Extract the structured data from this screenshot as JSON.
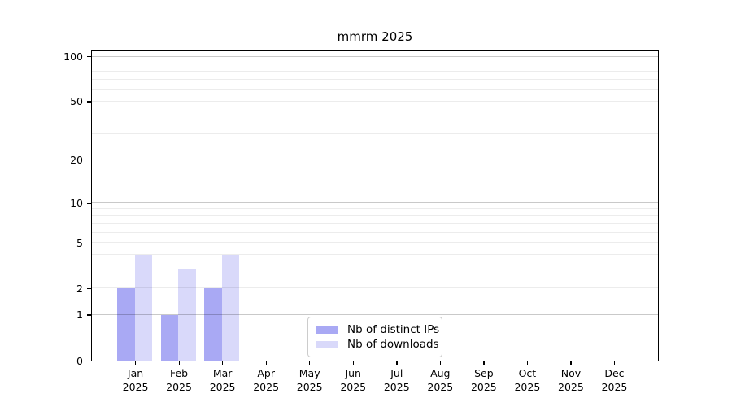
{
  "chart_data": {
    "type": "bar",
    "title": "mmrm 2025",
    "categories": [
      "Jan",
      "Feb",
      "Mar",
      "Apr",
      "May",
      "Jun",
      "Jul",
      "Aug",
      "Sep",
      "Oct",
      "Nov",
      "Dec"
    ],
    "category_year": "2025",
    "series": [
      {
        "name": "Nb of distinct IPs",
        "color": "#a9a9f4",
        "values": [
          2,
          1,
          2,
          0,
          0,
          0,
          0,
          0,
          0,
          0,
          0,
          0
        ]
      },
      {
        "name": "Nb of downloads",
        "color": "#d9d9fa",
        "values": [
          4,
          3,
          4,
          0,
          0,
          0,
          0,
          0,
          0,
          0,
          0,
          0
        ]
      }
    ],
    "xlabel": "",
    "ylabel": "",
    "yscale": "log1p",
    "ylim": [
      0,
      110
    ],
    "y_ticks": [
      0,
      1,
      2,
      5,
      10,
      20,
      50,
      100
    ],
    "y_major_gridlines": [
      1,
      10,
      100
    ],
    "y_minor_gridlines": [
      2,
      3,
      4,
      5,
      6,
      7,
      8,
      9,
      20,
      30,
      40,
      50,
      60,
      70,
      80,
      90
    ],
    "grid": "horizontal",
    "legend_position": "lower center",
    "colors": {
      "frame": "#000000",
      "grid_major": "#c9c9c9",
      "grid_minor": "#ececec",
      "text": "#000000"
    }
  }
}
